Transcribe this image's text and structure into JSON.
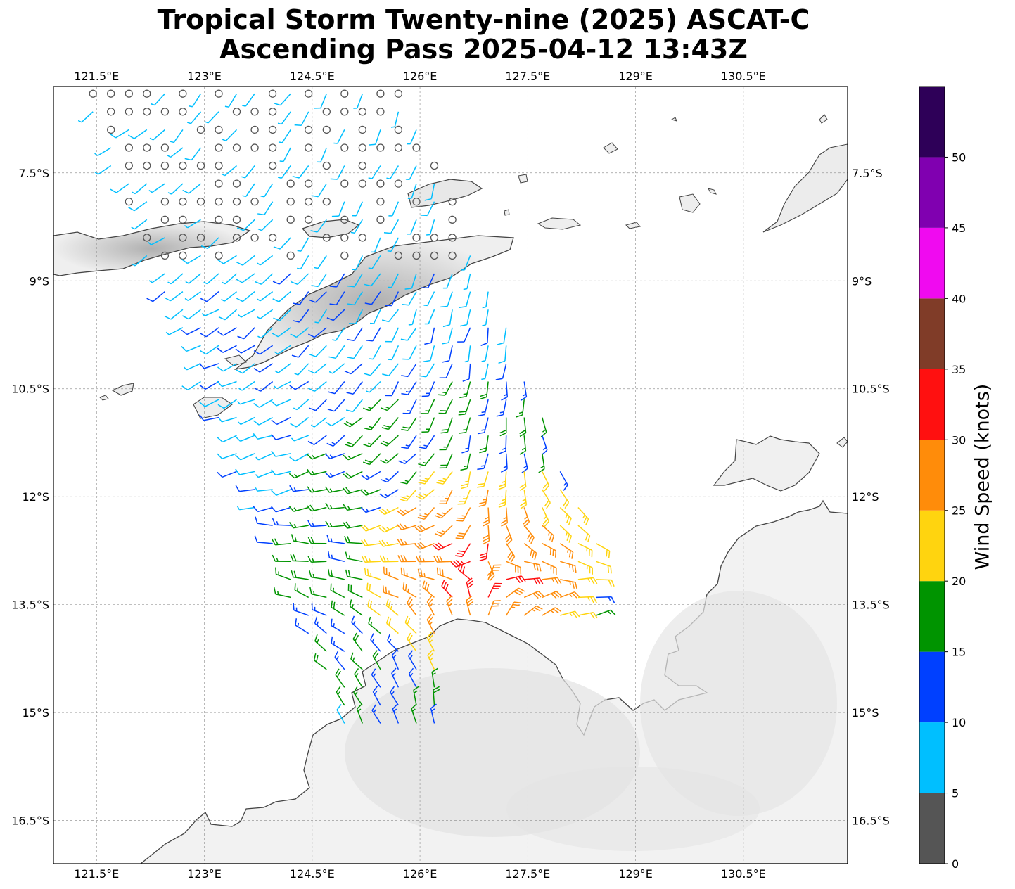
{
  "title": {
    "line1": "Tropical Storm Twenty-nine (2025) ASCAT-C",
    "line2": "Ascending Pass 2025-04-12 13:43Z"
  },
  "map": {
    "lon_range": [
      120.9,
      131.95
    ],
    "lat_range": [
      -17.1,
      -6.3
    ],
    "lon_ticks": [
      "121.5°E",
      "123°E",
      "124.5°E",
      "126°E",
      "127.5°E",
      "129°E",
      "130.5°E"
    ],
    "lon_tick_values": [
      121.5,
      123,
      124.5,
      126,
      127.5,
      129,
      130.5
    ],
    "lat_ticks": [
      "7.5°S",
      "9°S",
      "10.5°S",
      "12°S",
      "13.5°S",
      "15°S",
      "16.5°S"
    ],
    "lat_tick_values": [
      -7.5,
      -9,
      -10.5,
      -12,
      -13.5,
      -15,
      -16.5
    ],
    "gridlines": true,
    "basemap": "grayscale terrain with coastlines",
    "storm_center_approx": {
      "lon": 126.9,
      "lat": -13.0
    }
  },
  "colorbar": {
    "label": "Wind Speed (knots)",
    "tick_labels": [
      "0",
      "5",
      "10",
      "15",
      "20",
      "25",
      "30",
      "35",
      "40",
      "45",
      "50"
    ],
    "bins": [
      {
        "min": 0,
        "max": 5,
        "color": "#555555"
      },
      {
        "min": 5,
        "max": 10,
        "color": "#00bfff"
      },
      {
        "min": 10,
        "max": 15,
        "color": "#0040ff"
      },
      {
        "min": 15,
        "max": 20,
        "color": "#009400"
      },
      {
        "min": 20,
        "max": 25,
        "color": "#ffd40f"
      },
      {
        "min": 25,
        "max": 30,
        "color": "#ff8c0a"
      },
      {
        "min": 30,
        "max": 35,
        "color": "#ff1010"
      },
      {
        "min": 35,
        "max": 40,
        "color": "#803c28"
      },
      {
        "min": 40,
        "max": 45,
        "color": "#f00af0"
      },
      {
        "min": 45,
        "max": 50,
        "color": "#8000b0"
      },
      {
        "min": 50,
        "max": 55,
        "color": "#2e0058"
      }
    ]
  }
}
